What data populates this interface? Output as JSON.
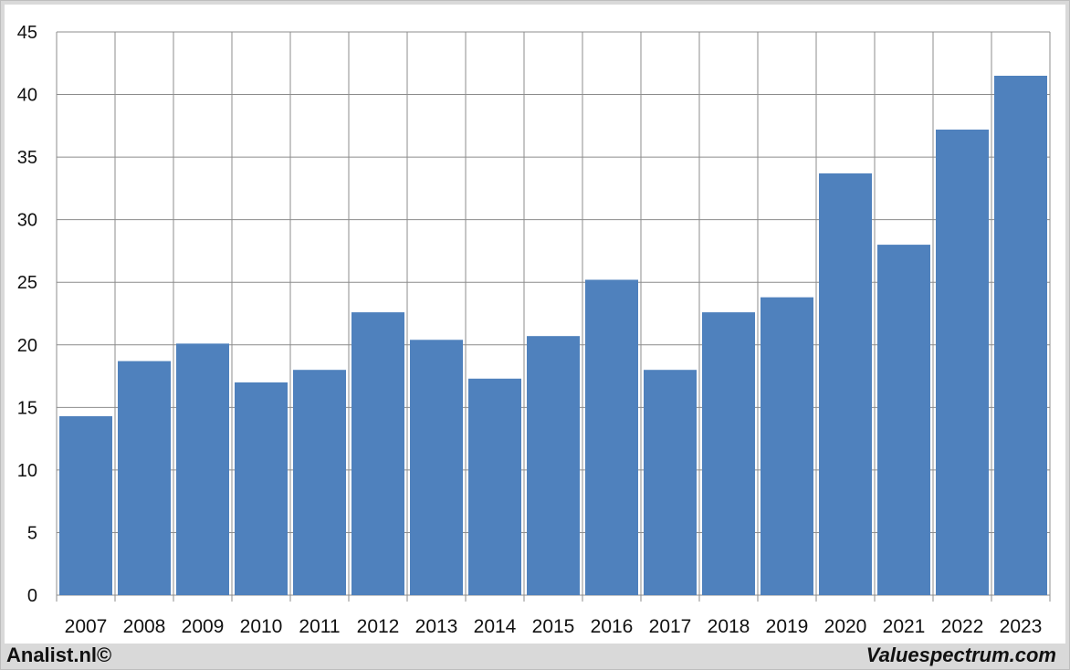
{
  "chart_data": {
    "type": "bar",
    "title": "",
    "xlabel": "",
    "ylabel": "",
    "categories": [
      "2007",
      "2008",
      "2009",
      "2010",
      "2011",
      "2012",
      "2013",
      "2014",
      "2015",
      "2016",
      "2017",
      "2018",
      "2019",
      "2020",
      "2021",
      "2022",
      "2023"
    ],
    "values": [
      14.3,
      18.7,
      20.1,
      17.0,
      18.0,
      22.6,
      20.4,
      17.3,
      20.7,
      25.2,
      18.0,
      22.6,
      23.8,
      33.7,
      28.0,
      37.2,
      41.5
    ],
    "ylim": [
      0,
      45
    ],
    "yticks": [
      0,
      5,
      10,
      15,
      20,
      25,
      30,
      35,
      40,
      45
    ],
    "grid": true,
    "legend": "none",
    "colors": {
      "bar": "#4f81bd",
      "grid": "#8c8c8c",
      "axis": "#8c8c8c",
      "text": "#111111"
    }
  },
  "footer": {
    "left": "Analist.nl©",
    "right": "Valuespectrum.com"
  }
}
